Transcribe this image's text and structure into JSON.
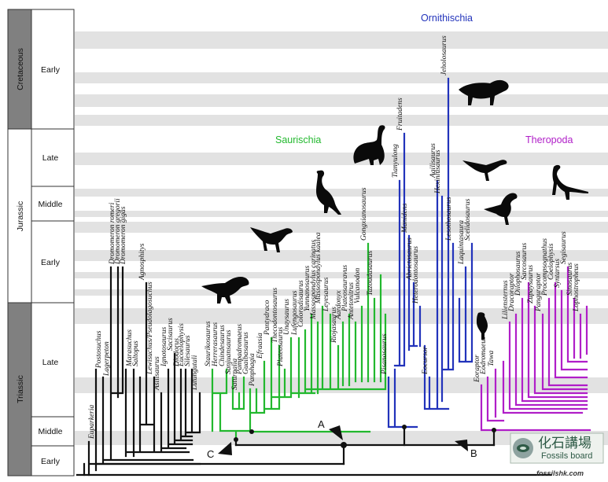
{
  "timescale": {
    "periods": [
      {
        "name": "Cretaceous",
        "epochs": [
          "Early"
        ]
      },
      {
        "name": "Jurassic",
        "epochs": [
          "Late",
          "Middle",
          "Early"
        ]
      },
      {
        "name": "Triassic",
        "epochs": [
          "Late",
          "Middle",
          "Early"
        ]
      }
    ]
  },
  "clade_titles": {
    "ornithischia": "Ornithischia",
    "saurischia": "Saurischia",
    "theropoda": "Theropoda"
  },
  "colors": {
    "basal": "#111111",
    "saurischia": "#22b82e",
    "ornithischia": "#2233bb",
    "theropoda": "#b01ec8",
    "period_box": "#808080",
    "band": "#e2e2e2"
  },
  "node_labels": {
    "A": "A",
    "B": "B",
    "C": "C"
  },
  "taxa": {
    "basal": [
      "Euparkeria",
      "Postosuchus",
      "Lagerpeton",
      "Dromomeron romeri",
      "Dromomeron gregorii",
      "Dromomeron gigas",
      "Marasuchus",
      "Saltopus",
      "Agnosphitys",
      "Lewisuchus/Pseudolagosuchus",
      "Asilisaurus",
      "Ignotosaurus",
      "Sacisaurus",
      "Diodorus",
      "Eucoelophysis",
      "Silesaurus",
      "Lutungutali"
    ],
    "saurischia": [
      "Staurikosaurus",
      "Herrerasaurus",
      "Chindesaurus",
      "Sanjuansaurus",
      "Saturnalia",
      "Pampadromaeus",
      "Guaibasaurus",
      "Panphagia",
      "Efraasia",
      "Pantydraco",
      "Thecodontosaurus",
      "Plateosaurus",
      "Unaysaurus",
      "Lufengosaurus",
      "Coloradisaurus",
      "Yunnanosaurus",
      "Massospondylus carinatus",
      "Massospondylus kaalea",
      "Leyesaurus",
      "Riojasaurus",
      "Aardonyx",
      "Plateosauravus",
      "Antetonitrus",
      "Vulcanodon",
      "Gongxianosaurus",
      "Tazoudasaurus"
    ],
    "ornithischia": [
      "Pisanosaurus",
      "Tianyulong",
      "Fruitadens",
      "Manidens",
      "Abrictosaurus",
      "Heterodontosaurus",
      "Eocursor",
      "Agilisaurus",
      "Hexinlusaurus",
      "Jeholosaurus",
      "Lesothosaurus",
      "Laquintasaura",
      "Scelidosaurus"
    ],
    "theropoda": [
      "Eoraptor",
      "Eodromaeus",
      "Tawa",
      "Liliensternus",
      "Dracoraptor",
      "Dilophosaurus",
      "Sarcosaurus",
      "Zupaysaurus",
      "Panguraptor",
      "Procompsognathus",
      "Coelophysis",
      "Syntarsus",
      "Segisaurus",
      "Sinosaurus",
      "Lophostropheus"
    ]
  },
  "watermark": {
    "chinese": "化石講場",
    "english": "Fossils board"
  },
  "url_text": "fossilshk.com"
}
